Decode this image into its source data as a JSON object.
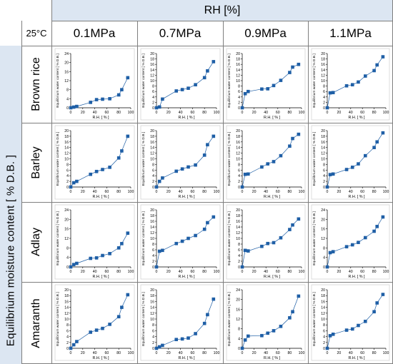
{
  "header": {
    "rh_label": "RH [%]",
    "temperature": "25°C",
    "pressures": [
      "0.1MPa",
      "0.7MPa",
      "0.9MPa",
      "1.1MPa"
    ]
  },
  "side_label": "Equilibrium moisture content [ % D.B. ]",
  "grains": [
    "Brown rice",
    "Barley",
    "Adlay",
    "Amaranth"
  ],
  "colors": {
    "header_bg": "#dce6f2",
    "series": "#1f5fa6"
  },
  "chart_data": [
    {
      "type": "line",
      "grain": "Brown rice",
      "pressure": "0.1MPa",
      "xlabel": "R.H. [ % ]",
      "ylabel": "Equilibrium water content [ % D.B.]",
      "xlim": [
        0,
        100
      ],
      "ylim": [
        0,
        24
      ],
      "xticks": [
        0,
        20,
        40,
        60,
        80,
        100
      ],
      "yticks": [
        0,
        4,
        8,
        12,
        16,
        20,
        24
      ],
      "x": [
        0,
        5,
        10,
        33,
        43,
        53,
        65,
        80,
        85,
        95
      ],
      "y": [
        0,
        0.3,
        0.6,
        2.4,
        3.6,
        3.8,
        4,
        5.7,
        8,
        13.3
      ]
    },
    {
      "type": "line",
      "grain": "Brown rice",
      "pressure": "0.7MPa",
      "xlabel": "R.H. [ % ]",
      "ylabel": "Equilibrium water content [ % D.B.]",
      "xlim": [
        0,
        100
      ],
      "ylim": [
        0,
        20
      ],
      "xticks": [
        0,
        20,
        40,
        60,
        80,
        100
      ],
      "yticks": [
        0,
        2,
        4,
        6,
        8,
        10,
        12,
        14,
        16,
        18,
        20
      ],
      "x": [
        0,
        5,
        10,
        33,
        43,
        53,
        65,
        80,
        85,
        95
      ],
      "y": [
        0,
        0.3,
        3.2,
        6.2,
        6.7,
        7.2,
        8.5,
        11.1,
        13.6,
        17
      ]
    },
    {
      "type": "line",
      "grain": "Brown rice",
      "pressure": "0.9MPa",
      "xlabel": "R.H. [ % ]",
      "ylabel": "Equilibrium water content [ % D.B.]",
      "xlim": [
        0,
        100
      ],
      "ylim": [
        0,
        20
      ],
      "xticks": [
        0,
        20,
        40,
        60,
        80,
        100
      ],
      "yticks": [
        0,
        2,
        4,
        6,
        8,
        10,
        12,
        14,
        16,
        18,
        20
      ],
      "x": [
        0,
        5,
        10,
        33,
        43,
        53,
        65,
        80,
        85,
        95
      ],
      "y": [
        0,
        5.2,
        6,
        6.9,
        7,
        8.2,
        10.1,
        13,
        15,
        16
      ]
    },
    {
      "type": "line",
      "grain": "Brown rice",
      "pressure": "1.1MPa",
      "xlabel": "R.H. [ % ]",
      "ylabel": "Equilibrium water content [ % D.B.]",
      "xlim": [
        0,
        100
      ],
      "ylim": [
        0,
        20
      ],
      "xticks": [
        0,
        20,
        40,
        60,
        80,
        100
      ],
      "yticks": [
        0,
        2,
        4,
        6,
        8,
        10,
        12,
        14,
        16,
        18,
        20
      ],
      "x": [
        0,
        5,
        10,
        33,
        43,
        53,
        65,
        80,
        85,
        95
      ],
      "y": [
        0,
        5.5,
        5.6,
        8.1,
        8.5,
        9.5,
        11.7,
        13.7,
        15.8,
        18.8
      ]
    },
    {
      "type": "line",
      "grain": "Barley",
      "pressure": "0.1MPa",
      "xlabel": "R.H. [ % ]",
      "ylabel": "Equilibrium water content [ % D.B.]",
      "xlim": [
        0,
        100
      ],
      "ylim": [
        0,
        20
      ],
      "xticks": [
        0,
        20,
        40,
        60,
        80,
        100
      ],
      "yticks": [
        0,
        2,
        4,
        6,
        8,
        10,
        12,
        14,
        16,
        18,
        20
      ],
      "x": [
        0,
        5,
        10,
        33,
        43,
        53,
        65,
        80,
        85,
        95
      ],
      "y": [
        0,
        1.5,
        2,
        4.5,
        5.5,
        6.2,
        7,
        10.3,
        12.8,
        18
      ]
    },
    {
      "type": "line",
      "grain": "Barley",
      "pressure": "0.7MPa",
      "xlabel": "R.H. [ % ]",
      "ylabel": "Equilibrium water content [ % D.B.]",
      "xlim": [
        0,
        100
      ],
      "ylim": [
        0,
        20
      ],
      "xticks": [
        0,
        20,
        40,
        60,
        80,
        100
      ],
      "yticks": [
        0,
        2,
        4,
        6,
        8,
        10,
        12,
        14,
        16,
        18,
        20
      ],
      "x": [
        0,
        5,
        10,
        33,
        43,
        53,
        65,
        80,
        85,
        95
      ],
      "y": [
        0,
        2,
        3.2,
        5.6,
        6.4,
        7.1,
        7.8,
        11.3,
        15,
        18
      ]
    },
    {
      "type": "line",
      "grain": "Barley",
      "pressure": "0.9MPa",
      "xlabel": "R.H. [ % ]",
      "ylabel": "Equilibrium water content [ % D.B.]",
      "xlim": [
        0,
        100
      ],
      "ylim": [
        0,
        20
      ],
      "xticks": [
        0,
        20,
        40,
        60,
        80,
        100
      ],
      "yticks": [
        0,
        2,
        4,
        6,
        8,
        10,
        12,
        14,
        16,
        18,
        20
      ],
      "x": [
        0,
        5,
        10,
        33,
        43,
        53,
        65,
        80,
        85,
        95
      ],
      "y": [
        0,
        4.5,
        4.6,
        7.1,
        8.2,
        9,
        11.1,
        14.5,
        17.2,
        18.7
      ]
    },
    {
      "type": "line",
      "grain": "Barley",
      "pressure": "1.1MPa",
      "xlabel": "R.H. [ % ]",
      "ylabel": "Equilibrium water content [ % D.B.]",
      "xlim": [
        0,
        100
      ],
      "ylim": [
        0,
        20
      ],
      "xticks": [
        0,
        20,
        40,
        60,
        80,
        100
      ],
      "yticks": [
        0,
        2,
        4,
        6,
        8,
        10,
        12,
        14,
        16,
        18,
        20
      ],
      "x": [
        0,
        5,
        10,
        33,
        43,
        53,
        65,
        80,
        85,
        95
      ],
      "y": [
        0,
        4.4,
        4.6,
        6.2,
        7,
        8.2,
        11.1,
        14,
        16,
        19.2
      ]
    },
    {
      "type": "line",
      "grain": "Adlay",
      "pressure": "0.1MPa",
      "xlabel": "R.H. [ % ]",
      "ylabel": "Equilibrium water content [ % D.B.]",
      "xlim": [
        0,
        100
      ],
      "ylim": [
        0,
        24
      ],
      "xticks": [
        0,
        20,
        40,
        60,
        80,
        100
      ],
      "yticks": [
        0,
        4,
        8,
        12,
        16,
        20,
        24
      ],
      "x": [
        0,
        5,
        10,
        33,
        43,
        53,
        65,
        80,
        85,
        95
      ],
      "y": [
        0,
        1,
        1.5,
        3.6,
        3.8,
        4.8,
        5.6,
        8,
        9.8,
        14.2
      ]
    },
    {
      "type": "line",
      "grain": "Adlay",
      "pressure": "0.7MPa",
      "xlabel": "R.H. [ % ]",
      "ylabel": "Equilibrium water content [ % D.B.]",
      "xlim": [
        0,
        100
      ],
      "ylim": [
        0,
        20
      ],
      "xticks": [
        0,
        20,
        40,
        60,
        80,
        100
      ],
      "yticks": [
        0,
        2,
        4,
        6,
        8,
        10,
        12,
        14,
        16,
        18,
        20
      ],
      "x": [
        0,
        5,
        10,
        33,
        43,
        53,
        65,
        80,
        85,
        95
      ],
      "y": [
        0,
        5.5,
        5.8,
        8.2,
        9,
        10,
        11,
        13.2,
        15.5,
        17.5
      ]
    },
    {
      "type": "line",
      "grain": "Adlay",
      "pressure": "0.9MPa",
      "xlabel": "R.H. [ % ]",
      "ylabel": "Equilibrium water content [ % D.B.]",
      "xlim": [
        0,
        100
      ],
      "ylim": [
        0,
        20
      ],
      "xticks": [
        0,
        20,
        40,
        60,
        80,
        100
      ],
      "yticks": [
        0,
        2,
        4,
        6,
        8,
        10,
        12,
        14,
        16,
        18,
        20
      ],
      "x": [
        0,
        5,
        10,
        33,
        43,
        53,
        65,
        80,
        85,
        95
      ],
      "y": [
        0,
        5.8,
        5.6,
        7.2,
        8.2,
        8.5,
        10.2,
        13.1,
        14.7,
        16.8
      ]
    },
    {
      "type": "line",
      "grain": "Adlay",
      "pressure": "1.1MPa",
      "xlabel": "R.H. [ % ]",
      "ylabel": "Equilibrium water content [ % D.B.]",
      "xlim": [
        0,
        100
      ],
      "ylim": [
        0,
        24
      ],
      "xticks": [
        0,
        20,
        40,
        60,
        80,
        100
      ],
      "yticks": [
        0,
        4,
        8,
        12,
        16,
        20,
        24
      ],
      "x": [
        0,
        5,
        10,
        33,
        43,
        53,
        65,
        80,
        85,
        95
      ],
      "y": [
        0,
        6,
        6.4,
        8.5,
        9.3,
        10.3,
        12.3,
        15,
        17,
        21
      ]
    },
    {
      "type": "line",
      "grain": "Amaranth",
      "pressure": "0.1MPa",
      "xlabel": "R.H. [ % ]",
      "ylabel": "Equilibrium water content [ % D.B.]",
      "xlim": [
        0,
        100
      ],
      "ylim": [
        0,
        20
      ],
      "xticks": [
        0,
        20,
        40,
        60,
        80,
        100
      ],
      "yticks": [
        0,
        2,
        4,
        6,
        8,
        10,
        12,
        14,
        16,
        18,
        20
      ],
      "x": [
        0,
        5,
        10,
        33,
        43,
        53,
        65,
        80,
        85,
        95
      ],
      "y": [
        0,
        1.2,
        2.3,
        5.5,
        6.2,
        6.8,
        8.2,
        10.8,
        14,
        18.3
      ]
    },
    {
      "type": "line",
      "grain": "Amaranth",
      "pressure": "0.7MPa",
      "xlabel": "R.H. [ % ]",
      "ylabel": "Equilibrium water content [ % D.B.]",
      "xlim": [
        0,
        100
      ],
      "ylim": [
        0,
        20
      ],
      "xticks": [
        0,
        20,
        40,
        60,
        80,
        100
      ],
      "yticks": [
        0,
        2,
        4,
        6,
        8,
        10,
        12,
        14,
        16,
        18,
        20
      ],
      "x": [
        0,
        5,
        10,
        33,
        43,
        53,
        65,
        80,
        85,
        95
      ],
      "y": [
        0,
        0.5,
        1,
        3,
        3.2,
        3.5,
        5,
        8.5,
        11.5,
        16.8
      ]
    },
    {
      "type": "line",
      "grain": "Amaranth",
      "pressure": "0.9MPa",
      "xlabel": "R.H. [ % ]",
      "ylabel": "Equilibrium water content [ % D.B.]",
      "xlim": [
        0,
        100
      ],
      "ylim": [
        0,
        24
      ],
      "xticks": [
        0,
        20,
        40,
        60,
        80,
        100
      ],
      "yticks": [
        0,
        4,
        8,
        12,
        16,
        20,
        24
      ],
      "x": [
        0,
        5,
        10,
        33,
        43,
        53,
        65,
        80,
        85,
        95
      ],
      "y": [
        0,
        3.4,
        5,
        5.2,
        6.2,
        7.2,
        9,
        12.5,
        15,
        21.4
      ]
    },
    {
      "type": "line",
      "grain": "Amaranth",
      "pressure": "1.1MPa",
      "xlabel": "R.H. [ % ]",
      "ylabel": "Equilibrium water content [ % D.B.]",
      "xlim": [
        0,
        100
      ],
      "ylim": [
        0,
        20
      ],
      "xticks": [
        0,
        20,
        40,
        60,
        80,
        100
      ],
      "yticks": [
        0,
        2,
        4,
        6,
        8,
        10,
        12,
        14,
        16,
        18,
        20
      ],
      "x": [
        0,
        5,
        10,
        33,
        43,
        53,
        65,
        80,
        85,
        95
      ],
      "y": [
        0,
        4.3,
        4.8,
        6.2,
        6.6,
        7.8,
        9.2,
        12.5,
        15.5,
        18.4
      ]
    }
  ]
}
